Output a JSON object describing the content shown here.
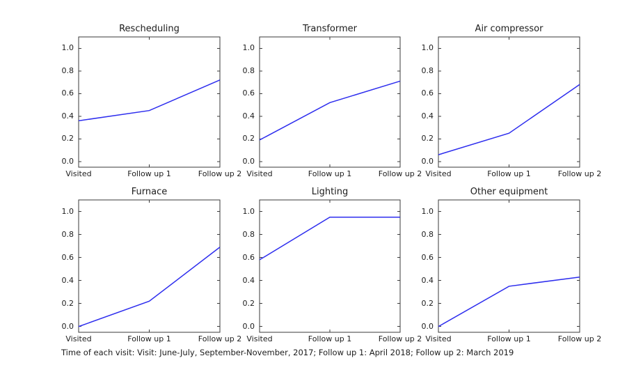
{
  "figure": {
    "background": "#ffffff",
    "caption": "Time of each visit: Visit: June-July, September-November, 2017; Follow up 1: April 2018; Follow up 2: March 2019"
  },
  "chart_data": {
    "type": "line",
    "layout": "grid of 6 subplots, 2 rows x 3 columns",
    "categories": [
      "Visited",
      "Follow up 1",
      "Follow up 2"
    ],
    "subplots": [
      {
        "title": "Rescheduling",
        "values": [
          0.36,
          0.45,
          0.72
        ]
      },
      {
        "title": "Transformer",
        "values": [
          0.19,
          0.52,
          0.71
        ]
      },
      {
        "title": "Air compressor",
        "values": [
          0.06,
          0.25,
          0.68
        ]
      },
      {
        "title": "Furnace",
        "values": [
          0.0,
          0.22,
          0.69
        ]
      },
      {
        "title": "Lighting",
        "values": [
          0.58,
          0.95,
          0.95
        ]
      },
      {
        "title": "Other equipment",
        "values": [
          0.0,
          0.35,
          0.43
        ]
      }
    ],
    "xlabel": "",
    "ylabel": "",
    "ylim": [
      -0.05,
      1.1
    ],
    "yticks": [
      0.0,
      0.2,
      0.4,
      0.6,
      0.8,
      1.0
    ],
    "ytick_labels": [
      "0.0",
      "0.2",
      "0.4",
      "0.6",
      "0.8",
      "1.0"
    ],
    "grid": false,
    "legend": null,
    "line_color": "#2d2dee",
    "axis_color": "#3a3a3a",
    "text_color": "#1c1c1c",
    "tick_style": "inward ticks on all four spines"
  }
}
